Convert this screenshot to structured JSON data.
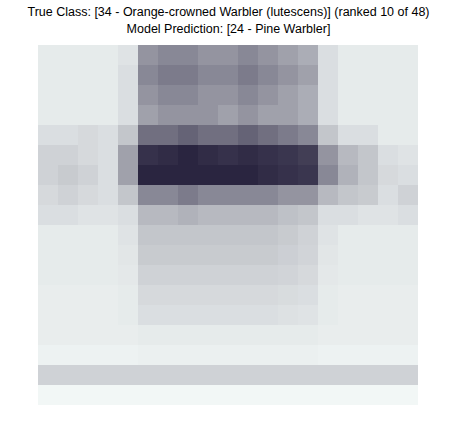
{
  "chart_data": {
    "type": "heatmap",
    "title": "True Class: [34 - Orange-crowned Warbler (lutescens)] (ranked 10 of 48)",
    "subtitle": "Model Prediction: [24 - Pine Warbler]",
    "tick_labels": false,
    "grid": false,
    "cells": [
      [
        0.15,
        0.15,
        0.15,
        0.15,
        0.18,
        0.5,
        0.55,
        0.55,
        0.5,
        0.5,
        0.55,
        0.5,
        0.45,
        0.4,
        0.2,
        0.15,
        0.15,
        0.15,
        0.15
      ],
      [
        0.15,
        0.15,
        0.15,
        0.15,
        0.2,
        0.55,
        0.6,
        0.6,
        0.55,
        0.55,
        0.6,
        0.55,
        0.5,
        0.45,
        0.2,
        0.15,
        0.15,
        0.15,
        0.15
      ],
      [
        0.15,
        0.15,
        0.15,
        0.15,
        0.2,
        0.5,
        0.55,
        0.55,
        0.5,
        0.5,
        0.55,
        0.5,
        0.45,
        0.4,
        0.2,
        0.15,
        0.15,
        0.15,
        0.15
      ],
      [
        0.15,
        0.15,
        0.15,
        0.15,
        0.2,
        0.45,
        0.5,
        0.5,
        0.5,
        0.45,
        0.5,
        0.45,
        0.45,
        0.4,
        0.2,
        0.15,
        0.15,
        0.15,
        0.15
      ],
      [
        0.2,
        0.2,
        0.22,
        0.2,
        0.3,
        0.65,
        0.65,
        0.7,
        0.65,
        0.65,
        0.7,
        0.65,
        0.6,
        0.55,
        0.3,
        0.2,
        0.2,
        0.15,
        0.15
      ],
      [
        0.25,
        0.25,
        0.22,
        0.2,
        0.45,
        0.9,
        0.92,
        0.95,
        0.92,
        0.9,
        0.92,
        0.9,
        0.88,
        0.85,
        0.5,
        0.35,
        0.3,
        0.2,
        0.18
      ],
      [
        0.25,
        0.28,
        0.25,
        0.2,
        0.45,
        0.95,
        0.95,
        0.95,
        0.95,
        0.95,
        0.95,
        0.92,
        0.9,
        0.88,
        0.55,
        0.38,
        0.3,
        0.22,
        0.2
      ],
      [
        0.22,
        0.25,
        0.22,
        0.2,
        0.3,
        0.55,
        0.55,
        0.6,
        0.55,
        0.55,
        0.55,
        0.55,
        0.5,
        0.5,
        0.35,
        0.3,
        0.28,
        0.2,
        0.25
      ],
      [
        0.2,
        0.2,
        0.18,
        0.18,
        0.2,
        0.35,
        0.35,
        0.38,
        0.35,
        0.35,
        0.35,
        0.35,
        0.32,
        0.3,
        0.2,
        0.2,
        0.18,
        0.18,
        0.2
      ],
      [
        0.15,
        0.15,
        0.15,
        0.15,
        0.18,
        0.3,
        0.3,
        0.3,
        0.3,
        0.3,
        0.3,
        0.3,
        0.28,
        0.25,
        0.18,
        0.15,
        0.15,
        0.15,
        0.15
      ],
      [
        0.15,
        0.15,
        0.15,
        0.15,
        0.17,
        0.28,
        0.28,
        0.28,
        0.28,
        0.28,
        0.28,
        0.28,
        0.26,
        0.24,
        0.17,
        0.15,
        0.15,
        0.15,
        0.15
      ],
      [
        0.15,
        0.15,
        0.15,
        0.15,
        0.16,
        0.25,
        0.25,
        0.25,
        0.25,
        0.25,
        0.25,
        0.25,
        0.24,
        0.22,
        0.16,
        0.15,
        0.15,
        0.15,
        0.15
      ],
      [
        0.14,
        0.14,
        0.14,
        0.14,
        0.15,
        0.22,
        0.22,
        0.22,
        0.22,
        0.22,
        0.22,
        0.22,
        0.21,
        0.2,
        0.15,
        0.14,
        0.14,
        0.14,
        0.14
      ],
      [
        0.14,
        0.14,
        0.14,
        0.14,
        0.15,
        0.2,
        0.2,
        0.2,
        0.2,
        0.2,
        0.2,
        0.2,
        0.19,
        0.18,
        0.15,
        0.14,
        0.14,
        0.14,
        0.14
      ],
      [
        0.14,
        0.14,
        0.14,
        0.14,
        0.14,
        0.15,
        0.15,
        0.15,
        0.15,
        0.15,
        0.15,
        0.15,
        0.15,
        0.15,
        0.14,
        0.14,
        0.14,
        0.14,
        0.14
      ],
      [
        0.12,
        0.12,
        0.12,
        0.12,
        0.12,
        0.13,
        0.13,
        0.13,
        0.13,
        0.13,
        0.13,
        0.13,
        0.13,
        0.13,
        0.12,
        0.12,
        0.12,
        0.12,
        0.12
      ],
      [
        0.25,
        0.25,
        0.25,
        0.25,
        0.25,
        0.25,
        0.25,
        0.25,
        0.25,
        0.25,
        0.25,
        0.25,
        0.25,
        0.25,
        0.25,
        0.25,
        0.25,
        0.25,
        0.25
      ],
      [
        0.1,
        0.1,
        0.1,
        0.1,
        0.1,
        0.1,
        0.1,
        0.1,
        0.1,
        0.1,
        0.1,
        0.1,
        0.1,
        0.1,
        0.1,
        0.1,
        0.1,
        0.1,
        0.1
      ]
    ]
  }
}
